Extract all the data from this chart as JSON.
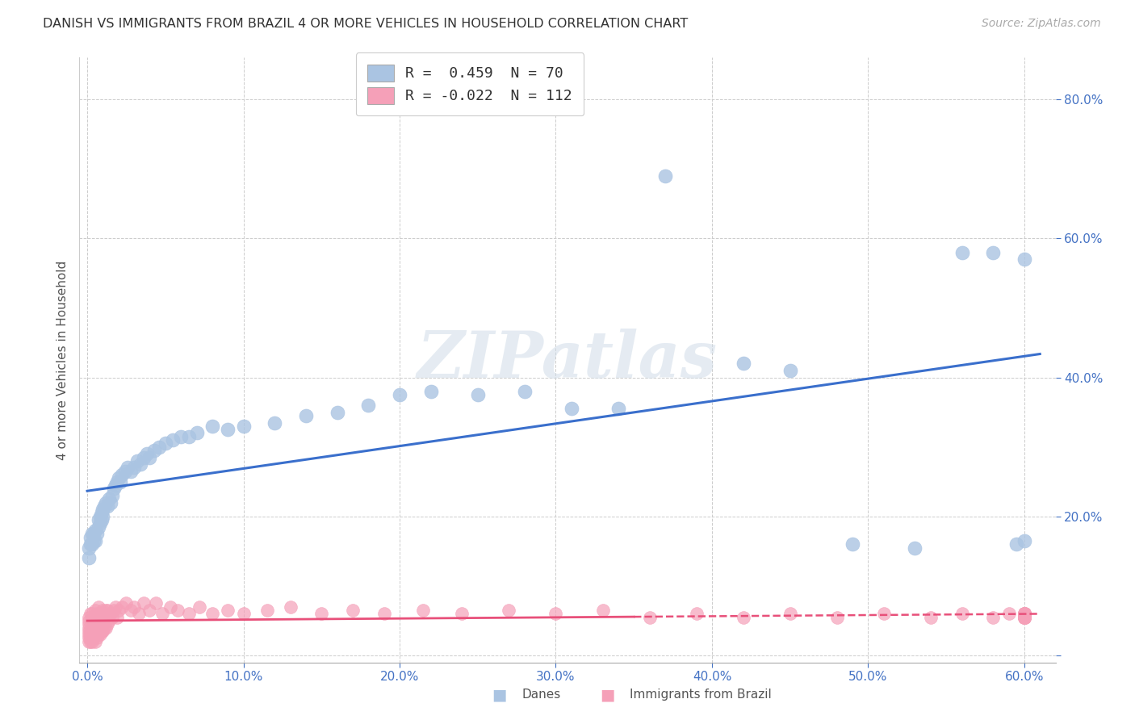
{
  "title": "DANISH VS IMMIGRANTS FROM BRAZIL 4 OR MORE VEHICLES IN HOUSEHOLD CORRELATION CHART",
  "source": "Source: ZipAtlas.com",
  "xlim": [
    -0.005,
    0.62
  ],
  "ylim": [
    -0.01,
    0.86
  ],
  "xticks": [
    0.0,
    0.1,
    0.2,
    0.3,
    0.4,
    0.5,
    0.6
  ],
  "yticks": [
    0.0,
    0.2,
    0.4,
    0.6,
    0.8
  ],
  "xtick_labels": [
    "0.0%",
    "10.0%",
    "20.0%",
    "30.0%",
    "40.0%",
    "50.0%",
    "60.0%"
  ],
  "ytick_labels": [
    "0.0%",
    "20.0%",
    "40.0%",
    "60.0%",
    "80.0%"
  ],
  "danes_R": 0.459,
  "danes_N": 70,
  "brazil_R": -0.022,
  "brazil_N": 112,
  "danes_color": "#aac4e2",
  "brazil_color": "#f5a0b8",
  "danes_line_color": "#3a6fcc",
  "brazil_line_color": "#e8507a",
  "watermark": "ZIPatlas",
  "ylabel": "4 or more Vehicles in Household",
  "legend_text_danes": "R =  0.459  N = 70",
  "legend_text_brazil": "R = -0.022  N = 112",
  "danes_x": [
    0.001,
    0.001,
    0.002,
    0.002,
    0.003,
    0.003,
    0.004,
    0.004,
    0.005,
    0.005,
    0.006,
    0.007,
    0.007,
    0.008,
    0.008,
    0.009,
    0.009,
    0.01,
    0.01,
    0.011,
    0.012,
    0.013,
    0.014,
    0.015,
    0.016,
    0.017,
    0.018,
    0.019,
    0.02,
    0.021,
    0.022,
    0.024,
    0.026,
    0.028,
    0.03,
    0.032,
    0.034,
    0.036,
    0.038,
    0.04,
    0.043,
    0.046,
    0.05,
    0.055,
    0.06,
    0.065,
    0.07,
    0.08,
    0.09,
    0.1,
    0.12,
    0.14,
    0.16,
    0.18,
    0.2,
    0.22,
    0.25,
    0.28,
    0.31,
    0.34,
    0.37,
    0.42,
    0.45,
    0.49,
    0.53,
    0.56,
    0.58,
    0.595,
    0.6,
    0.6
  ],
  "danes_y": [
    0.14,
    0.155,
    0.16,
    0.17,
    0.16,
    0.175,
    0.165,
    0.175,
    0.165,
    0.18,
    0.175,
    0.185,
    0.195,
    0.19,
    0.2,
    0.195,
    0.205,
    0.2,
    0.21,
    0.215,
    0.22,
    0.215,
    0.225,
    0.22,
    0.23,
    0.24,
    0.245,
    0.25,
    0.255,
    0.25,
    0.26,
    0.265,
    0.27,
    0.265,
    0.27,
    0.28,
    0.275,
    0.285,
    0.29,
    0.285,
    0.295,
    0.3,
    0.305,
    0.31,
    0.315,
    0.315,
    0.32,
    0.33,
    0.325,
    0.33,
    0.335,
    0.345,
    0.35,
    0.36,
    0.375,
    0.38,
    0.375,
    0.38,
    0.355,
    0.355,
    0.69,
    0.42,
    0.41,
    0.16,
    0.155,
    0.58,
    0.58,
    0.16,
    0.57,
    0.165
  ],
  "brazil_x": [
    0.001,
    0.001,
    0.001,
    0.001,
    0.001,
    0.001,
    0.001,
    0.001,
    0.002,
    0.002,
    0.002,
    0.002,
    0.002,
    0.003,
    0.003,
    0.003,
    0.003,
    0.003,
    0.004,
    0.004,
    0.004,
    0.004,
    0.005,
    0.005,
    0.005,
    0.005,
    0.005,
    0.006,
    0.006,
    0.006,
    0.006,
    0.007,
    0.007,
    0.007,
    0.008,
    0.008,
    0.008,
    0.009,
    0.009,
    0.01,
    0.01,
    0.01,
    0.011,
    0.011,
    0.012,
    0.012,
    0.013,
    0.013,
    0.014,
    0.015,
    0.016,
    0.017,
    0.018,
    0.019,
    0.02,
    0.022,
    0.025,
    0.028,
    0.03,
    0.033,
    0.036,
    0.04,
    0.044,
    0.048,
    0.053,
    0.058,
    0.065,
    0.072,
    0.08,
    0.09,
    0.1,
    0.115,
    0.13,
    0.15,
    0.17,
    0.19,
    0.215,
    0.24,
    0.27,
    0.3,
    0.33,
    0.36,
    0.39,
    0.42,
    0.45,
    0.48,
    0.51,
    0.54,
    0.56,
    0.58,
    0.59,
    0.6,
    0.6,
    0.6,
    0.6,
    0.6,
    0.6,
    0.6,
    0.6,
    0.6,
    0.6,
    0.6,
    0.6,
    0.6,
    0.6,
    0.6,
    0.6,
    0.6,
    0.6,
    0.6,
    0.6,
    0.6
  ],
  "brazil_y": [
    0.02,
    0.025,
    0.03,
    0.035,
    0.04,
    0.045,
    0.05,
    0.055,
    0.02,
    0.025,
    0.03,
    0.035,
    0.06,
    0.02,
    0.03,
    0.04,
    0.05,
    0.06,
    0.025,
    0.035,
    0.045,
    0.055,
    0.02,
    0.03,
    0.04,
    0.05,
    0.065,
    0.025,
    0.035,
    0.045,
    0.06,
    0.03,
    0.04,
    0.07,
    0.03,
    0.045,
    0.06,
    0.035,
    0.055,
    0.035,
    0.05,
    0.065,
    0.04,
    0.06,
    0.04,
    0.065,
    0.045,
    0.065,
    0.05,
    0.06,
    0.055,
    0.065,
    0.07,
    0.055,
    0.065,
    0.07,
    0.075,
    0.065,
    0.07,
    0.06,
    0.075,
    0.065,
    0.075,
    0.06,
    0.07,
    0.065,
    0.06,
    0.07,
    0.06,
    0.065,
    0.06,
    0.065,
    0.07,
    0.06,
    0.065,
    0.06,
    0.065,
    0.06,
    0.065,
    0.06,
    0.065,
    0.055,
    0.06,
    0.055,
    0.06,
    0.055,
    0.06,
    0.055,
    0.06,
    0.055,
    0.06,
    0.055,
    0.06,
    0.055,
    0.06,
    0.055,
    0.06,
    0.055,
    0.06,
    0.055,
    0.06,
    0.055,
    0.06,
    0.055,
    0.06,
    0.055,
    0.06,
    0.055,
    0.06,
    0.055,
    0.06,
    0.055
  ]
}
